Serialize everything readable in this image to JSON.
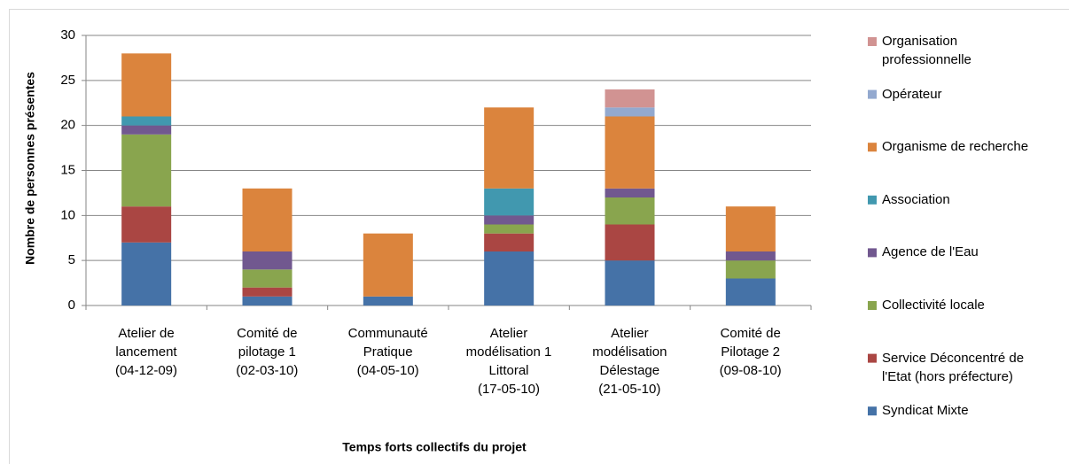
{
  "chart_data": {
    "type": "stacked_bar",
    "y_label": "Nombre de personnes présentes",
    "x_label": "Temps forts collectifs  du projet",
    "categories": [
      "Atelier de\nlancement\n(04-12-09)",
      "Comité de\npilotage 1\n(02-03-10)",
      "Communauté\nPratique\n(04-05-10)",
      "Atelier\nmodélisation 1\nLittoral\n(17-05-10)",
      "Atelier\nmodélisation\nDélestage\n(21-05-10)",
      "Comité de\nPilotage 2\n(09-08-10)"
    ],
    "series": [
      {
        "name": "Syndicat Mixte",
        "color": "#4572a7",
        "values": [
          7,
          1,
          1,
          6,
          5,
          3
        ]
      },
      {
        "name": "Service Déconcentré de\nl'Etat (hors préfecture)",
        "color": "#aa4643",
        "values": [
          4,
          1,
          0,
          2,
          4,
          0
        ]
      },
      {
        "name": "Collectivité locale",
        "color": "#89a54e",
        "values": [
          8,
          2,
          0,
          1,
          3,
          2
        ]
      },
      {
        "name": "Agence de l'Eau",
        "color": "#71588f",
        "values": [
          1,
          2,
          0,
          1,
          1,
          1
        ]
      },
      {
        "name": "Association",
        "color": "#4198af",
        "values": [
          1,
          0,
          0,
          3,
          0,
          0
        ]
      },
      {
        "name": "Organisme de recherche",
        "color": "#db843d",
        "values": [
          7,
          7,
          7,
          9,
          8,
          5
        ]
      },
      {
        "name": "Opérateur",
        "color": "#93a9cf",
        "values": [
          0,
          0,
          0,
          0,
          1,
          0
        ]
      },
      {
        "name": "Organisation\nprofessionnelle",
        "color": "#d19392",
        "values": [
          0,
          0,
          0,
          0,
          2,
          0
        ]
      }
    ],
    "ylim": [
      0,
      30
    ],
    "yticks": [
      0,
      5,
      10,
      15,
      20,
      25,
      30
    ],
    "grid": true,
    "legend": "right"
  }
}
